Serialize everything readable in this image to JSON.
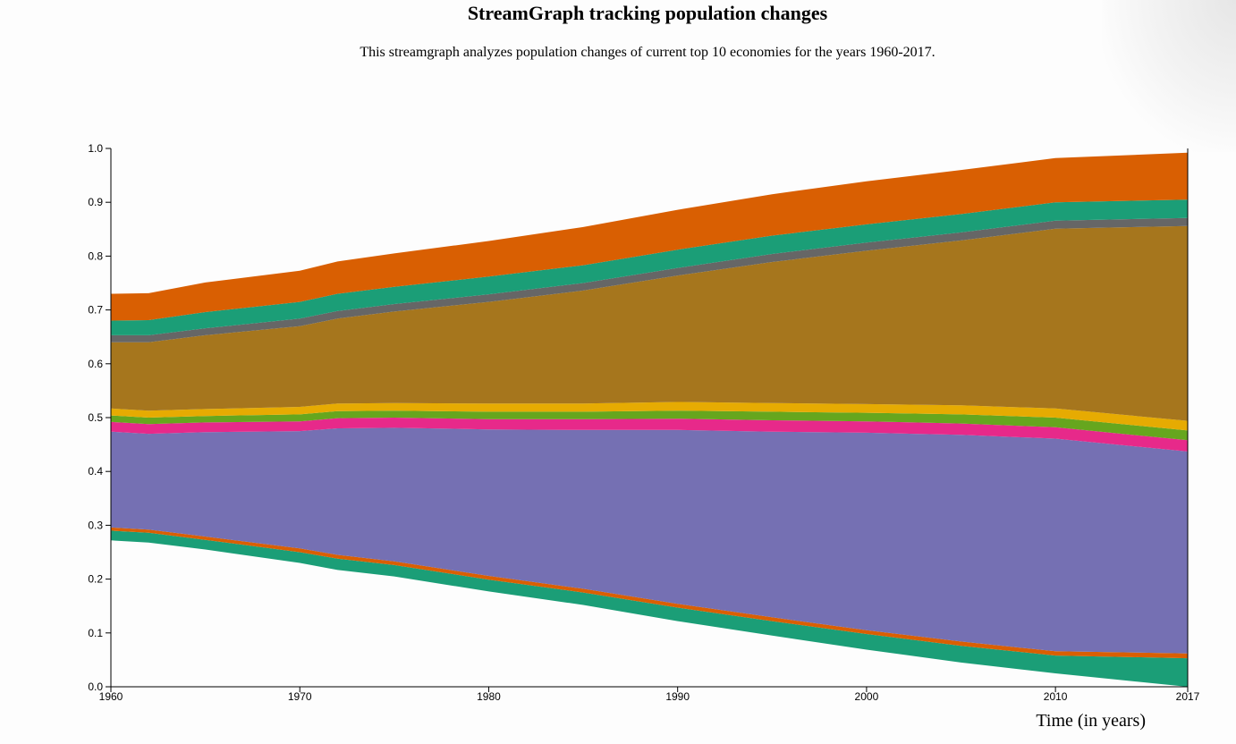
{
  "page": {
    "title": "StreamGraph tracking population changes",
    "subtitle": "This streamgraph analyzes population changes of current top 10 economies for the years 1960-2017."
  },
  "chart_data": {
    "type": "area",
    "stacked": true,
    "title": "StreamGraph tracking population changes",
    "subtitle": "This streamgraph analyzes population changes of current top 10 economies for the years 1960-2017.",
    "xlabel": "Time (in years)",
    "ylabel": "",
    "xlim": [
      1960,
      2017
    ],
    "ylim": [
      0,
      1.0
    ],
    "x_ticks": [
      1960,
      1970,
      1980,
      1990,
      2000,
      2010,
      2017
    ],
    "y_ticks": [
      "0.0",
      "0.1",
      "0.2",
      "0.3",
      "0.4",
      "0.5",
      "0.6",
      "0.7",
      "0.8",
      "0.9",
      "1.0"
    ],
    "grid": false,
    "legend": "none",
    "x": [
      1960,
      1962,
      1965,
      1970,
      1972,
      1975,
      1980,
      1985,
      1990,
      1995,
      2000,
      2005,
      2010,
      2017
    ],
    "baseline": [
      0.272,
      0.268,
      0.255,
      0.23,
      0.217,
      0.205,
      0.177,
      0.152,
      0.122,
      0.095,
      0.069,
      0.045,
      0.025,
      0.0
    ],
    "series": [
      {
        "color": "#1b9e77",
        "values": [
          0.018,
          0.018,
          0.018,
          0.02,
          0.021,
          0.021,
          0.022,
          0.023,
          0.025,
          0.027,
          0.029,
          0.031,
          0.033,
          0.053
        ]
      },
      {
        "color": "#d95f02",
        "values": [
          0.006,
          0.006,
          0.006,
          0.007,
          0.007,
          0.007,
          0.007,
          0.007,
          0.007,
          0.007,
          0.007,
          0.008,
          0.008,
          0.009
        ]
      },
      {
        "color": "#7570b3",
        "values": [
          0.178,
          0.178,
          0.194,
          0.218,
          0.235,
          0.248,
          0.272,
          0.295,
          0.323,
          0.345,
          0.367,
          0.384,
          0.395,
          0.375
        ]
      },
      {
        "color": "#e7298a",
        "values": [
          0.018,
          0.018,
          0.018,
          0.018,
          0.019,
          0.019,
          0.019,
          0.02,
          0.021,
          0.021,
          0.021,
          0.021,
          0.021,
          0.021
        ]
      },
      {
        "color": "#66a61e",
        "values": [
          0.012,
          0.012,
          0.012,
          0.013,
          0.013,
          0.013,
          0.014,
          0.014,
          0.015,
          0.016,
          0.016,
          0.017,
          0.018,
          0.018
        ]
      },
      {
        "color": "#e6ab02",
        "values": [
          0.013,
          0.013,
          0.013,
          0.014,
          0.014,
          0.014,
          0.015,
          0.015,
          0.016,
          0.016,
          0.016,
          0.017,
          0.017,
          0.018
        ]
      },
      {
        "color": "#a6761d",
        "values": [
          0.123,
          0.127,
          0.137,
          0.15,
          0.158,
          0.17,
          0.189,
          0.21,
          0.235,
          0.262,
          0.285,
          0.306,
          0.334,
          0.362
        ]
      },
      {
        "color": "#666666",
        "values": [
          0.013,
          0.013,
          0.013,
          0.014,
          0.014,
          0.014,
          0.014,
          0.014,
          0.014,
          0.015,
          0.015,
          0.015,
          0.015,
          0.015
        ]
      },
      {
        "color": "#1b9e77",
        "values": [
          0.027,
          0.028,
          0.03,
          0.031,
          0.032,
          0.032,
          0.033,
          0.033,
          0.034,
          0.034,
          0.034,
          0.034,
          0.034,
          0.034
        ]
      },
      {
        "color": "#d95f02",
        "values": [
          0.05,
          0.05,
          0.055,
          0.058,
          0.06,
          0.062,
          0.066,
          0.071,
          0.074,
          0.077,
          0.08,
          0.082,
          0.082,
          0.087
        ]
      }
    ]
  }
}
